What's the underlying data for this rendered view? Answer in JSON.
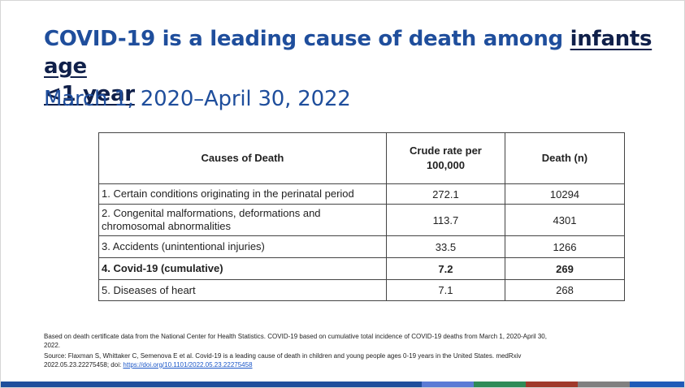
{
  "title": {
    "part1": "COVID-19 is a leading cause of death among ",
    "underlined_line1": "infants age",
    "underlined_line2": "<1 year"
  },
  "subtitle": "March 1, 2020–April 30, 2022",
  "table": {
    "headers": {
      "cause": "Causes of Death",
      "rate_line1": "Crude rate per",
      "rate_line2": "100,000",
      "deaths": "Death (n)"
    },
    "rows": [
      {
        "cause": "1. Certain conditions originating in the perinatal period",
        "rate": "272.1",
        "deaths": "10294"
      },
      {
        "cause_line1": "2. Congenital malformations, deformations and",
        "cause_line2": "chromosomal abnormalities",
        "rate": "113.7",
        "deaths": "4301"
      },
      {
        "cause": "3. Accidents (unintentional injuries)",
        "rate": "33.5",
        "deaths": "1266"
      },
      {
        "cause": "4. Covid-19 (cumulative)",
        "rate": "7.2",
        "deaths": "269",
        "bold": true
      },
      {
        "cause": "5. Diseases of heart",
        "rate": "7.1",
        "deaths": "268"
      }
    ]
  },
  "footnote": {
    "line1": "Based on death certificate data from the National Center for Health Statistics. COVID-19 based on cumulative total incidence of COVID-19 deaths from March 1, 2020-April 30,",
    "line2": "2022.",
    "line3": "Source: Flaxman S, Whittaker C, Semenova E et al. Covid-19 is a leading cause of death in children and young people ages 0-19 years in the United States. medRxiv",
    "line4_prefix": "2022.05.23.22275458; doi: ",
    "link_text": "https://doi.org/10.1101/2022.05.23.22275458"
  },
  "colors": {
    "title": "#1f4e9c",
    "title_underlined": "#10204a",
    "bar_primary": "#1f4e9c",
    "bar_light_blue": "#5b7bd5",
    "bar_green": "#2e8b57",
    "bar_red": "#a0392b",
    "bar_gray": "#808080",
    "bar_end": "#1f5bb8"
  }
}
